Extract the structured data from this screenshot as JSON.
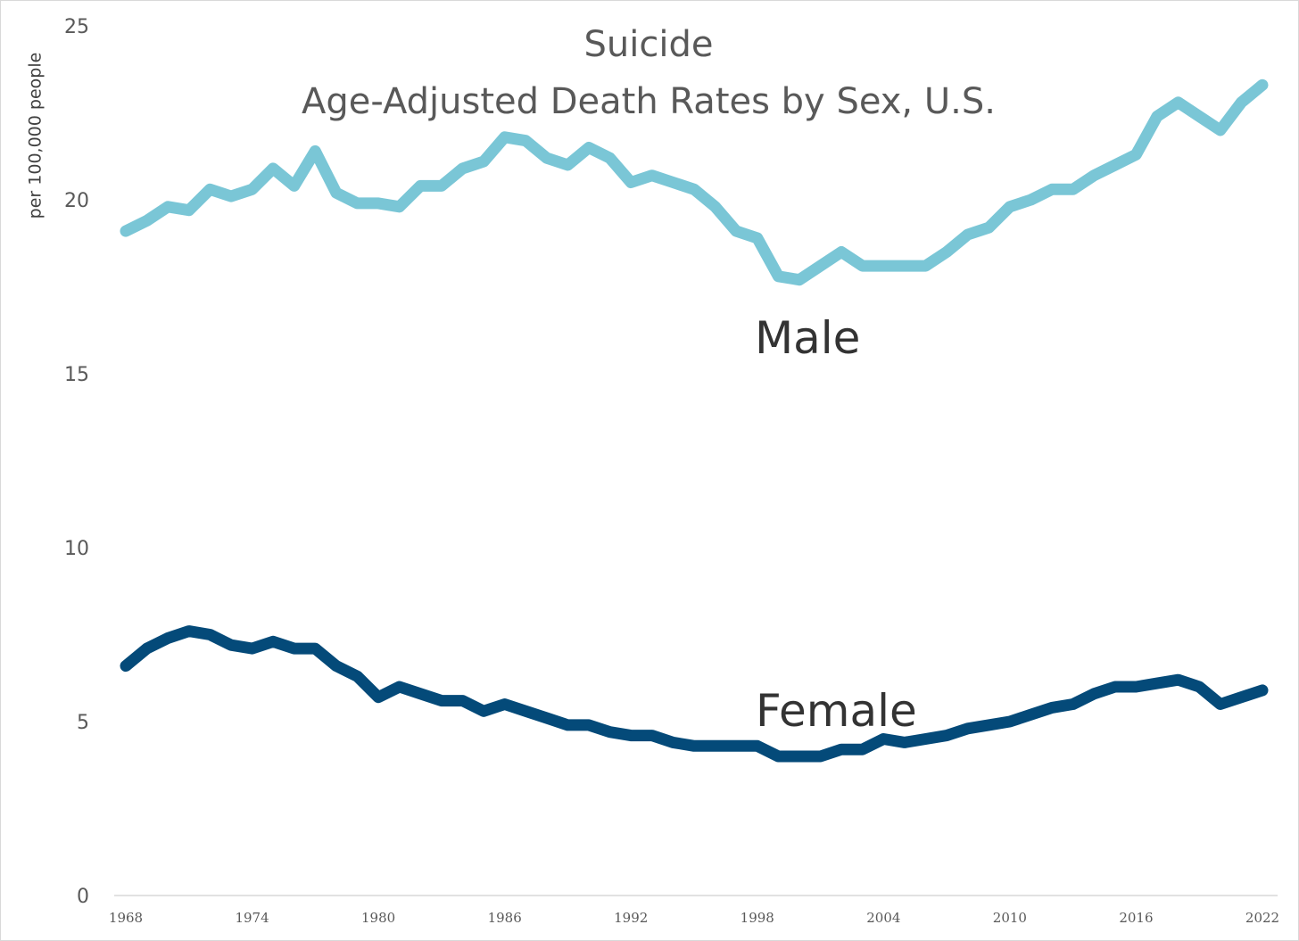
{
  "chart_data": {
    "type": "line",
    "title": "Suicide",
    "subtitle": "Age-Adjusted Death Rates by Sex, U.S.",
    "ylabel": "per 100,000 people",
    "xlabel": "",
    "ylim": [
      0,
      25
    ],
    "yticks": [
      "0",
      "5",
      "10",
      "15",
      "20",
      "25"
    ],
    "xticks": [
      "1968",
      "1974",
      "1980",
      "1986",
      "1992",
      "1998",
      "2004",
      "2010",
      "2016",
      "2022"
    ],
    "x": [
      1968,
      1969,
      1970,
      1971,
      1972,
      1973,
      1974,
      1975,
      1976,
      1977,
      1978,
      1979,
      1980,
      1981,
      1982,
      1983,
      1984,
      1985,
      1986,
      1987,
      1988,
      1989,
      1990,
      1991,
      1992,
      1993,
      1994,
      1995,
      1996,
      1997,
      1998,
      1999,
      2000,
      2001,
      2002,
      2003,
      2004,
      2005,
      2006,
      2007,
      2008,
      2009,
      2010,
      2011,
      2012,
      2013,
      2014,
      2015,
      2016,
      2017,
      2018,
      2019,
      2020,
      2021,
      2022
    ],
    "grid": false,
    "legend": "none",
    "series": [
      {
        "name": "Male",
        "color": "#7ac6d6",
        "values": [
          19.1,
          19.4,
          19.8,
          19.7,
          20.3,
          20.1,
          20.3,
          20.9,
          20.4,
          21.4,
          20.2,
          19.9,
          19.9,
          19.8,
          20.4,
          20.4,
          20.9,
          21.1,
          21.8,
          21.7,
          21.2,
          21.0,
          21.5,
          21.2,
          20.5,
          20.7,
          20.5,
          20.3,
          19.8,
          19.1,
          18.9,
          17.8,
          17.7,
          18.1,
          18.5,
          18.1,
          18.1,
          18.1,
          18.1,
          18.5,
          19.0,
          19.2,
          19.8,
          20.0,
          20.3,
          20.3,
          20.7,
          21.0,
          21.3,
          22.4,
          22.8,
          22.4,
          22.0,
          22.8,
          23.3
        ]
      },
      {
        "name": "Female",
        "color": "#044a79",
        "values": [
          6.6,
          7.1,
          7.4,
          7.6,
          7.5,
          7.2,
          7.1,
          7.3,
          7.1,
          7.1,
          6.6,
          6.3,
          5.7,
          6.0,
          5.8,
          5.6,
          5.6,
          5.3,
          5.5,
          5.3,
          5.1,
          4.9,
          4.9,
          4.7,
          4.6,
          4.6,
          4.4,
          4.3,
          4.3,
          4.3,
          4.3,
          4.0,
          4.0,
          4.0,
          4.2,
          4.2,
          4.5,
          4.4,
          4.5,
          4.6,
          4.8,
          4.9,
          5.0,
          5.2,
          5.4,
          5.5,
          5.8,
          6.0,
          6.0,
          6.1,
          6.2,
          6.0,
          5.5,
          5.7,
          5.9
        ]
      }
    ]
  }
}
